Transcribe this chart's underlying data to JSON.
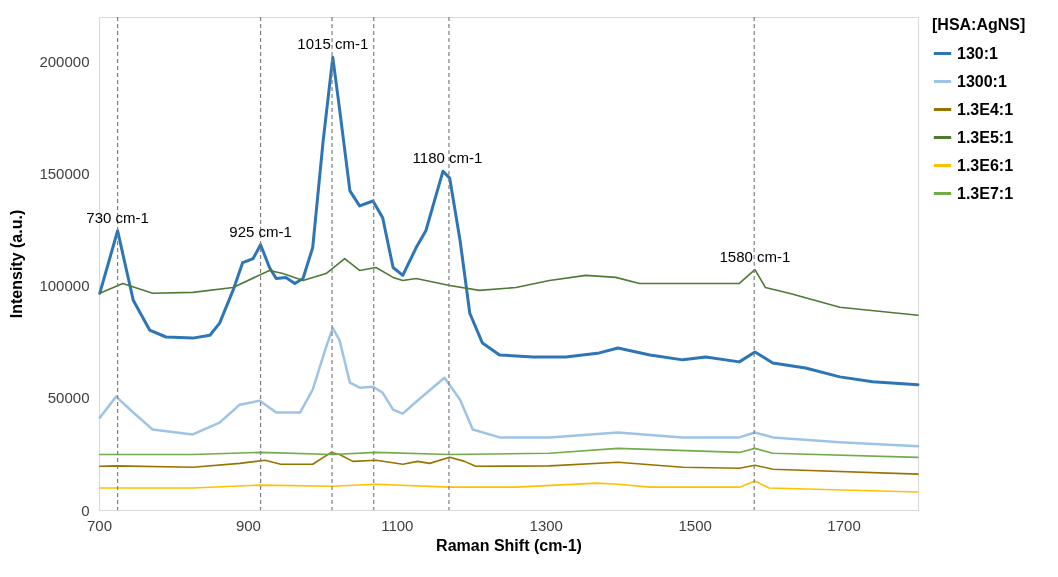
{
  "chart_data": {
    "type": "line",
    "xlabel": "Raman Shift (cm-1)",
    "ylabel": "Intensity (a.u.)",
    "legend_title": "[HSA:AgNS]",
    "legend": "right",
    "grid": false,
    "marker": "none",
    "xlim": [
      700,
      1800
    ],
    "xticks": [
      700,
      900,
      1100,
      1300,
      1500,
      1700
    ],
    "ylim": [
      0,
      220000
    ],
    "yticks": [
      0,
      50000,
      100000,
      150000,
      200000
    ],
    "series": [
      {
        "name": "130:1",
        "color": "#2e75b6",
        "x": [
          701,
          725,
          746,
          768,
          790,
          826,
          849,
          862,
          880,
          893,
          907,
          917,
          929,
          938,
          951,
          963,
          974,
          987,
          1001,
          1014,
          1023,
          1037,
          1050,
          1068,
          1081,
          1095,
          1108,
          1126,
          1139,
          1162,
          1171,
          1185,
          1198,
          1215,
          1238,
          1283,
          1327,
          1372,
          1397,
          1440,
          1484,
          1515,
          1560,
          1581,
          1605,
          1649,
          1695,
          1739,
          1800
        ],
        "values": [
          96700,
          124600,
          93600,
          80300,
          77200,
          76700,
          78000,
          83400,
          98000,
          110400,
          112200,
          118400,
          108200,
          103300,
          103800,
          101100,
          103300,
          117100,
          164500,
          202000,
          179200,
          142400,
          135700,
          137900,
          130400,
          108200,
          104700,
          117100,
          124600,
          151200,
          148100,
          120200,
          87800,
          74500,
          69200,
          68300,
          68300,
          70100,
          72300,
          69200,
          67000,
          68300,
          66100,
          70500,
          65600,
          63400,
          59400,
          57200,
          55900
        ]
      },
      {
        "name": "1300:1",
        "color": "#9dc3e6",
        "x": [
          701,
          723,
          746,
          772,
          826,
          862,
          889,
          916,
          938,
          970,
          987,
          1005,
          1014,
          1023,
          1037,
          1050,
          1068,
          1081,
          1095,
          1108,
          1126,
          1164,
          1185,
          1202,
          1238,
          1305,
          1397,
          1484,
          1560,
          1581,
          1605,
          1695,
          1800
        ],
        "values": [
          41200,
          50600,
          43500,
          35900,
          33700,
          39000,
          47000,
          48800,
          43500,
          43500,
          53700,
          72700,
          81200,
          75800,
          56800,
          54600,
          55000,
          52300,
          44800,
          43000,
          48300,
          59000,
          49200,
          35900,
          32400,
          32400,
          34600,
          32400,
          32400,
          34600,
          32400,
          30200,
          28400
        ]
      },
      {
        "name": "1.3E4:1",
        "color": "#997300",
        "x": [
          701,
          723,
          826,
          889,
          923,
          944,
          987,
          1012,
          1023,
          1041,
          1072,
          1108,
          1128,
          1144,
          1171,
          1191,
          1206,
          1305,
          1397,
          1484,
          1560,
          1581,
          1605,
          1800
        ],
        "values": [
          19500,
          19700,
          19100,
          20800,
          22200,
          20400,
          20400,
          25700,
          24800,
          21700,
          22200,
          20400,
          21700,
          20800,
          23500,
          21700,
          19500,
          19700,
          21300,
          19100,
          18600,
          20000,
          18200,
          16000
        ]
      },
      {
        "name": "1.3E5:1",
        "color": "#4e7a35",
        "x": [
          701,
          732,
          772,
          826,
          880,
          929,
          947,
          974,
          1005,
          1030,
          1050,
          1072,
          1095,
          1108,
          1126,
          1171,
          1211,
          1260,
          1305,
          1354,
          1394,
          1426,
          1484,
          1560,
          1581,
          1595,
          1627,
          1695,
          1800
        ],
        "values": [
          96700,
          101100,
          96700,
          97100,
          99300,
          106900,
          105500,
          102400,
          105500,
          112200,
          106900,
          108200,
          103800,
          102400,
          103300,
          100200,
          98000,
          99300,
          102400,
          104700,
          103800,
          101100,
          101100,
          101100,
          107300,
          99300,
          96700,
          90500,
          86900
        ]
      },
      {
        "name": "1.3E6:1",
        "color": "#ffc000",
        "x": [
          701,
          826,
          917,
          1014,
          1072,
          1171,
          1260,
          1368,
          1397,
          1440,
          1560,
          1581,
          1600,
          1800
        ],
        "values": [
          9800,
          9800,
          11100,
          10600,
          11500,
          10200,
          10200,
          12000,
          11500,
          10200,
          10200,
          12900,
          9800,
          8000
        ]
      },
      {
        "name": "1.3E7:1",
        "color": "#70ad47",
        "x": [
          701,
          826,
          917,
          1014,
          1072,
          1171,
          1305,
          1397,
          1560,
          1581,
          1605,
          1800
        ],
        "values": [
          24800,
          24800,
          25700,
          24800,
          25700,
          24800,
          25300,
          27500,
          25700,
          27500,
          25300,
          23500
        ]
      }
    ],
    "ref_lines": [
      {
        "axis": "x",
        "value": 725,
        "color": "#7f7f7f",
        "line_style": "dashed"
      },
      {
        "axis": "x",
        "value": 917,
        "color": "#7f7f7f",
        "line_style": "dashed"
      },
      {
        "axis": "x",
        "value": 1013,
        "color": "#7f7f7f",
        "line_style": "dashed"
      },
      {
        "axis": "x",
        "value": 1069,
        "color": "#7f7f7f",
        "line_style": "dashed"
      },
      {
        "axis": "x",
        "value": 1170,
        "color": "#7f7f7f",
        "line_style": "dashed"
      },
      {
        "axis": "x",
        "value": 1580,
        "color": "#7f7f7f",
        "line_style": "dashed"
      }
    ],
    "annotations": [
      {
        "text": "730 cm-1",
        "x": 725,
        "y": 124600
      },
      {
        "text": "925 cm-1",
        "x": 917,
        "y": 118400
      },
      {
        "text": "1015 cm-1",
        "x": 1014,
        "y": 202000
      },
      {
        "text": "1180 cm-1",
        "x": 1168,
        "y": 151200
      },
      {
        "text": "1580 cm-1",
        "x": 1581,
        "y": 107300
      }
    ]
  }
}
